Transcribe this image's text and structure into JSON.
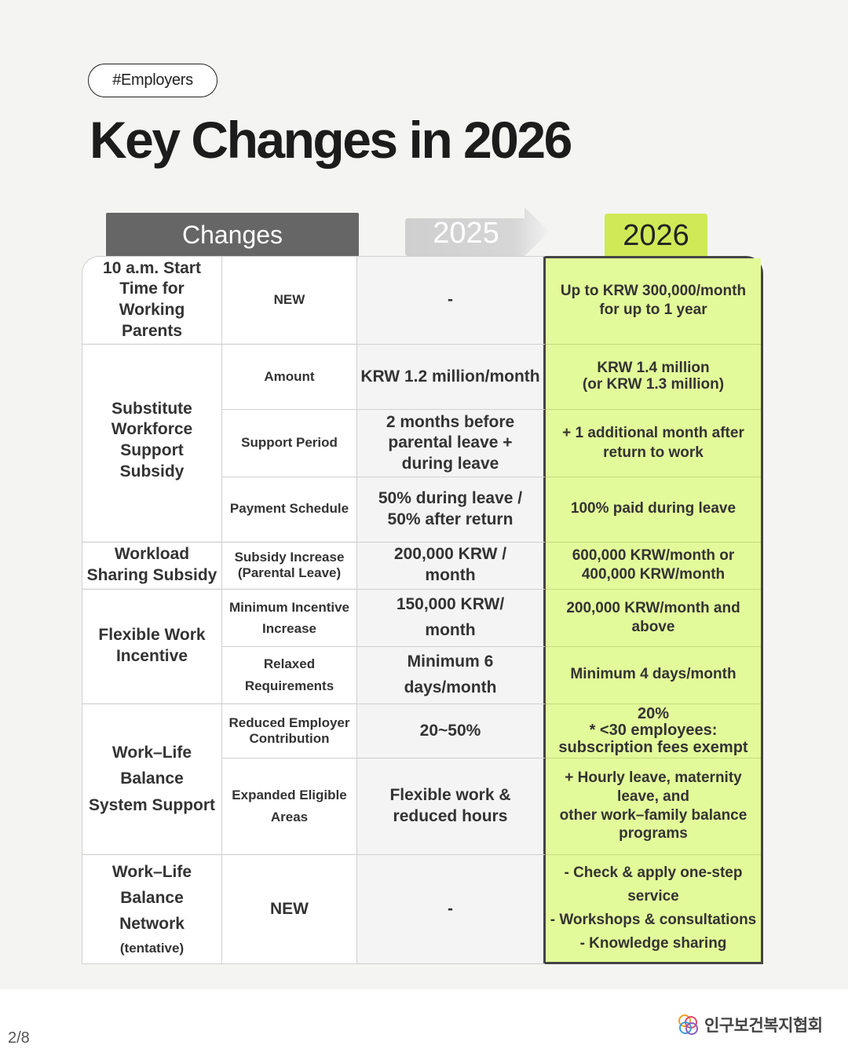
{
  "tag": "#Employers",
  "title": "Key Changes in 2026",
  "headers": {
    "changes": "Changes",
    "y2025": "2025",
    "y2026": "2026"
  },
  "rows": [
    {
      "c1": "10 a.m. Start\nTime for\nWorking\nParents",
      "c2": "NEW",
      "c3": "-",
      "c4": "Up to KRW 300,000/month\nfor up to 1 year"
    },
    {
      "c1": "Substitute\nWorkforce\nSupport\nSubsidy",
      "c2": "Amount",
      "c3": "KRW 1.2 million/month",
      "c4": "KRW 1.4 million\n(or KRW 1.3 million)"
    },
    {
      "c2": "Support Period",
      "c3": "2 months before\nparental leave +\nduring leave",
      "c4": "+ 1 additional month after\nreturn to work"
    },
    {
      "c2": "Payment Schedule",
      "c3": "50% during leave /\n50% after return",
      "c4": "100% paid during leave"
    },
    {
      "c1": "Workload\nSharing Subsidy",
      "c2": "Subsidy Increase\n(Parental Leave)",
      "c3": "200,000 KRW /\nmonth",
      "c4": "600,000 KRW/month or\n400,000 KRW/month"
    },
    {
      "c1": "Flexible Work\nIncentive",
      "c2": "Minimum Incentive\nIncrease",
      "c3": "150,000 KRW/\nmonth",
      "c4": "200,000 KRW/month and\nabove"
    },
    {
      "c2": "Relaxed\nRequirements",
      "c3": "Minimum 6\ndays/month",
      "c4": "Minimum 4 days/month"
    },
    {
      "c1": "Work–Life\nBalance\nSystem Support",
      "c2": "Reduced Employer\nContribution",
      "c3": "20~50%",
      "c4": "20%\n* <30 employees:\nsubscription fees exempt"
    },
    {
      "c2": "Expanded Eligible\nAreas",
      "c3": "Flexible work &\nreduced hours",
      "c4": "+ Hourly leave, maternity\nleave, and\nother work–family balance\nprograms"
    },
    {
      "c1": "Work–Life\nBalance\nNetwork",
      "c1_note": "(tentative)",
      "c2": "NEW",
      "c3": "-",
      "c4": "- Check & apply one-step\nservice\n- Workshops & consultations\n- Knowledge sharing"
    }
  ],
  "footer": {
    "page": "2/8",
    "org": "인구보건복지협회"
  }
}
